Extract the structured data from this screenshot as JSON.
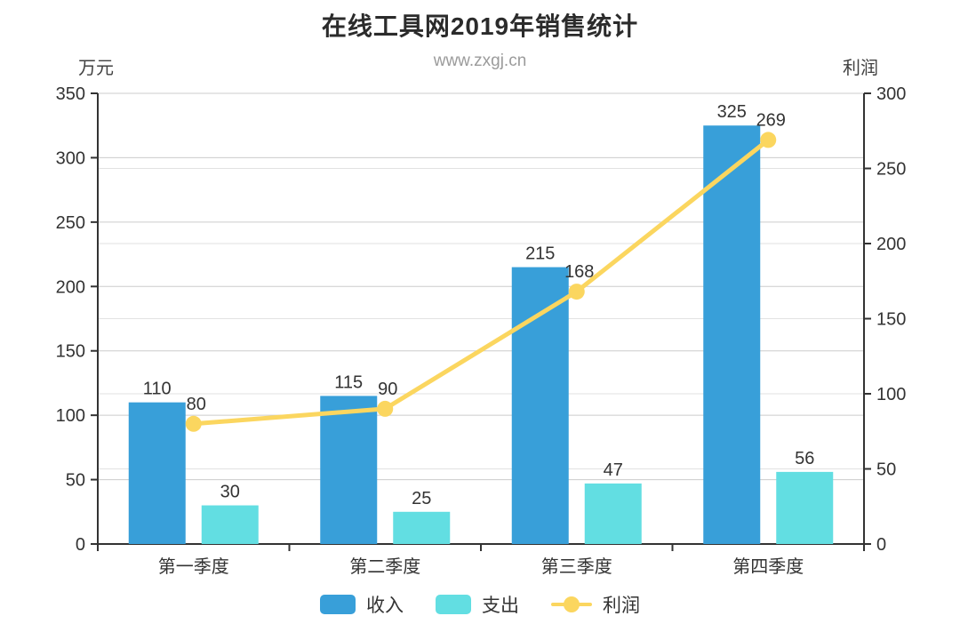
{
  "chart_data": {
    "type": "bar",
    "combo": "bar+line",
    "title": "在线工具网2019年销售统计",
    "subtitle": "www.zxgj.cn",
    "categories": [
      "第一季度",
      "第二季度",
      "第三季度",
      "第四季度"
    ],
    "series": [
      {
        "name": "收入",
        "type": "bar",
        "axis": "left",
        "color": "#389FD9",
        "values": [
          110,
          115,
          215,
          325
        ]
      },
      {
        "name": "支出",
        "type": "bar",
        "axis": "left",
        "color": "#62DEE2",
        "values": [
          30,
          25,
          47,
          56
        ]
      },
      {
        "name": "利润",
        "type": "line",
        "axis": "right",
        "color": "#FBD65F",
        "values": [
          80,
          90,
          168,
          269
        ]
      }
    ],
    "left_axis": {
      "name": "万元",
      "min": 0,
      "max": 350,
      "tick_step": 50,
      "ticks": [
        0,
        50,
        100,
        150,
        200,
        250,
        300,
        350
      ]
    },
    "right_axis": {
      "name": "利润",
      "min": 0,
      "max": 300,
      "tick_step": 50,
      "ticks": [
        0,
        50,
        100,
        150,
        200,
        250,
        300
      ]
    },
    "legend": {
      "position": "bottom",
      "items": [
        "收入",
        "支出",
        "利润"
      ]
    },
    "grid": true,
    "styles": {
      "title_color": "#2b2b2b",
      "subtitle_color": "#9b9b9b",
      "axis_line_color": "#333333",
      "tick_label_color": "#333333",
      "grid_major_color": "#cccccc",
      "grid_minor_color": "#e2e2e2"
    }
  }
}
